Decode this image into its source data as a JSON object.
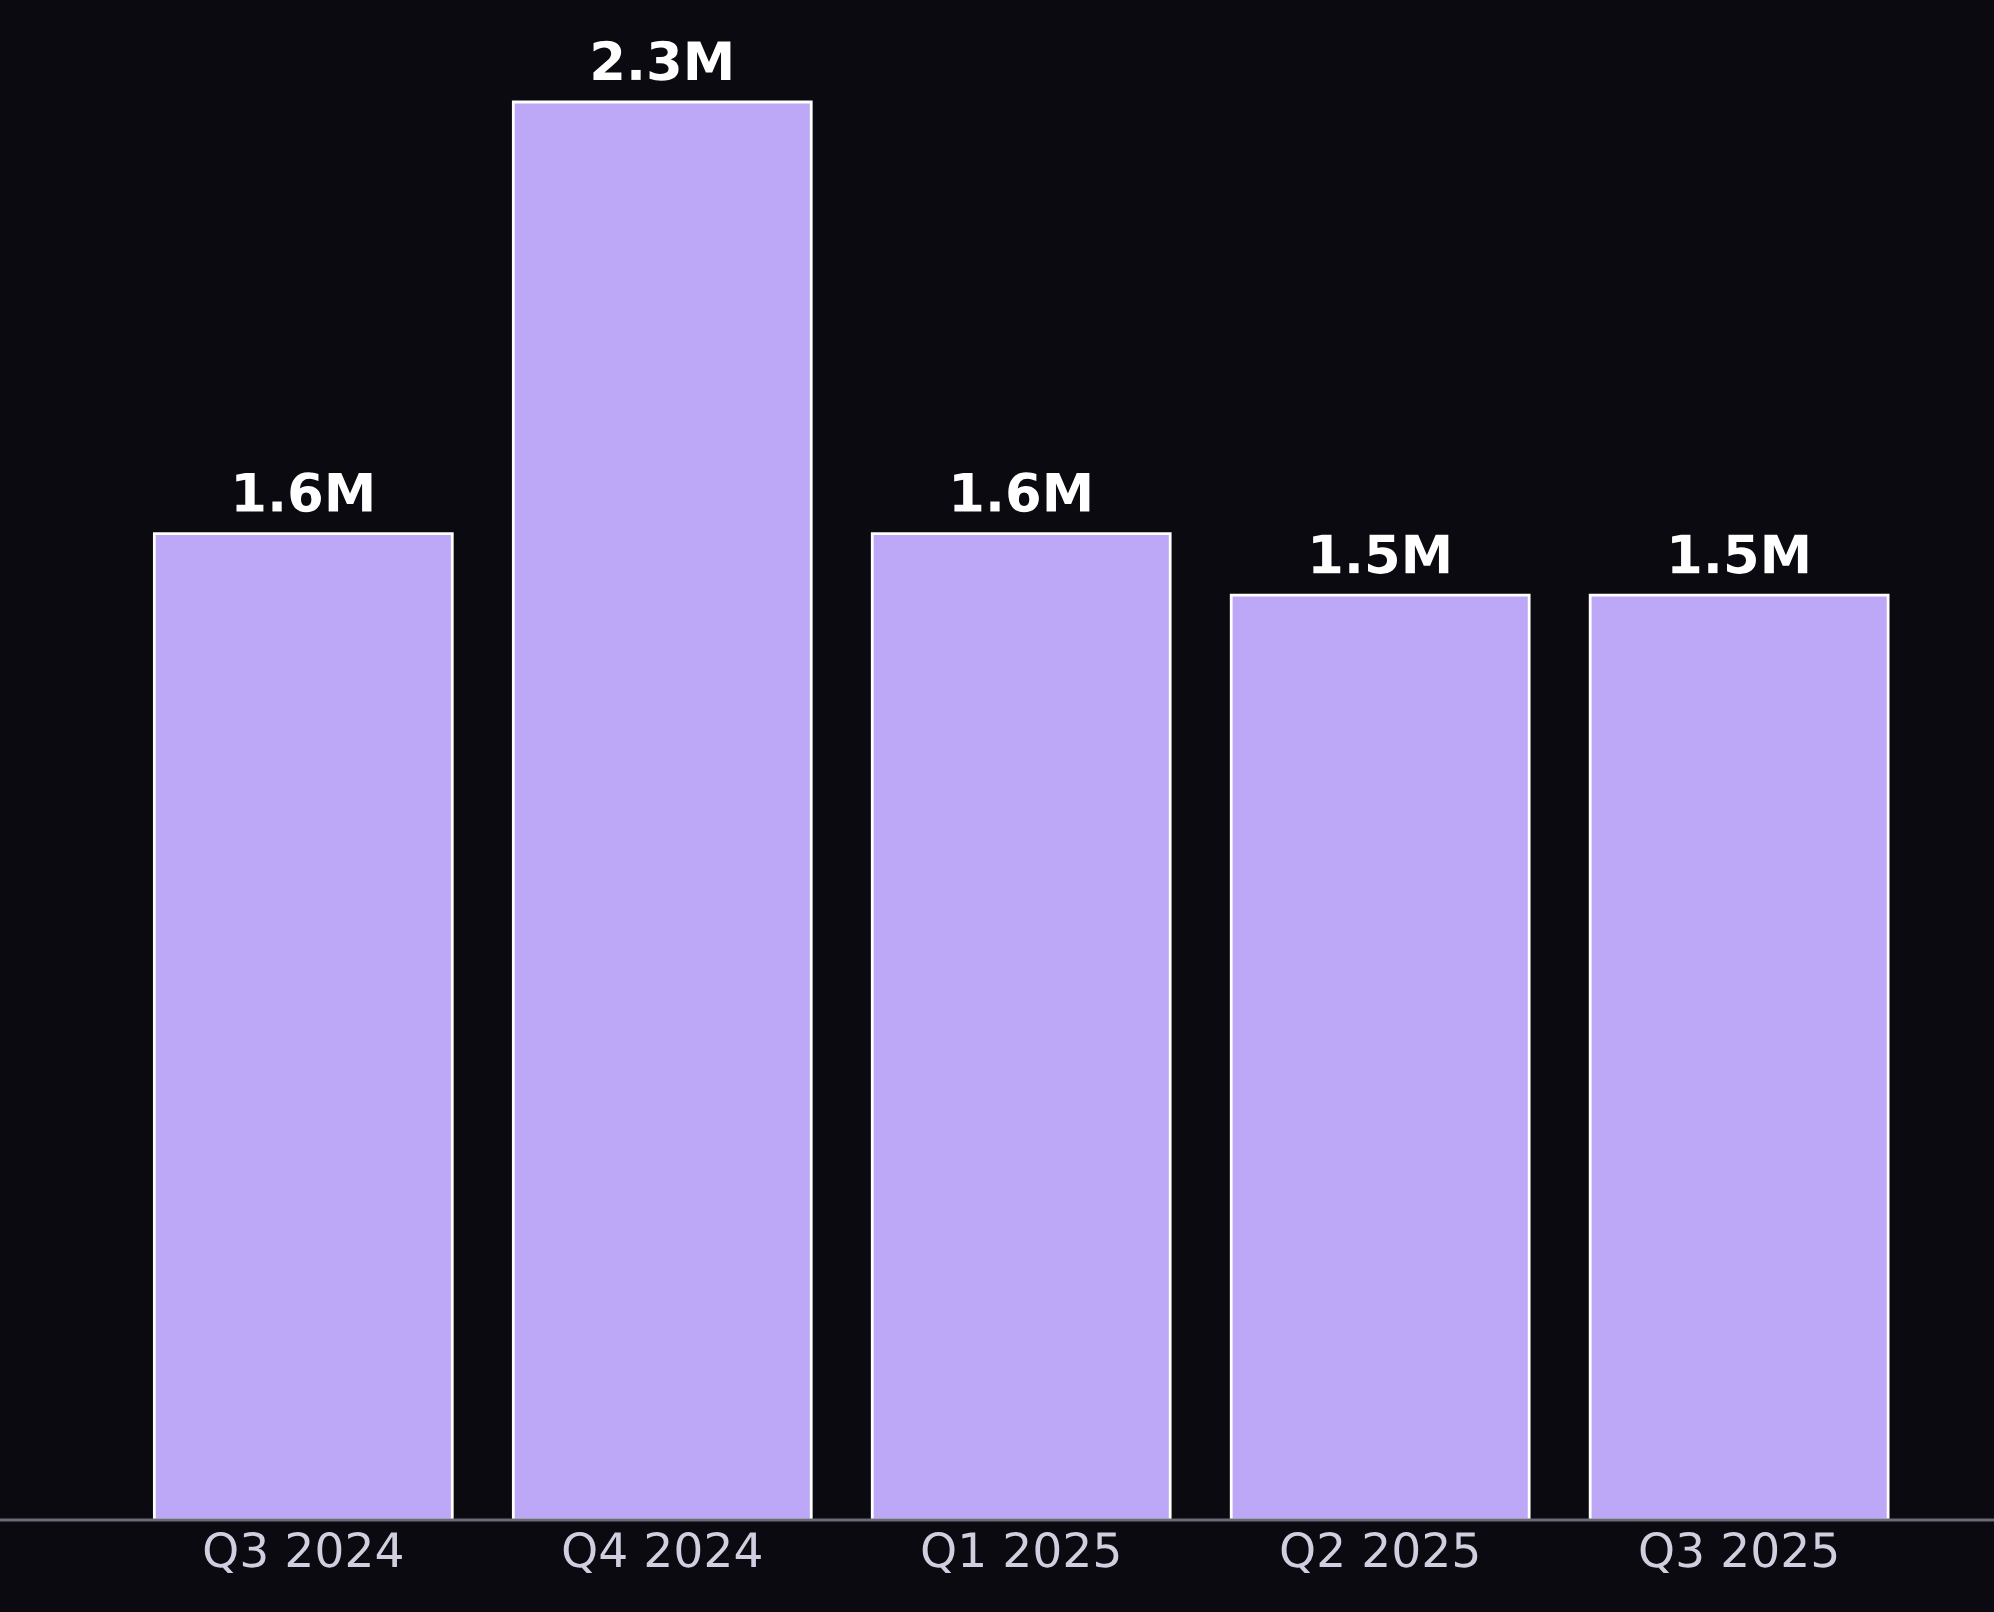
{
  "chart_data": {
    "type": "bar",
    "categories": [
      "Q3 2024",
      "Q4 2024",
      "Q1 2025",
      "Q2 2025",
      "Q3 2025"
    ],
    "values": [
      1.6,
      2.3,
      1.6,
      1.5,
      1.5
    ],
    "value_labels": [
      "1.6M",
      "2.3M",
      "1.6M",
      "1.5M",
      "1.5M"
    ],
    "color": "#bca8f6",
    "grid": false,
    "legend": false,
    "tick_labels": "x"
  }
}
